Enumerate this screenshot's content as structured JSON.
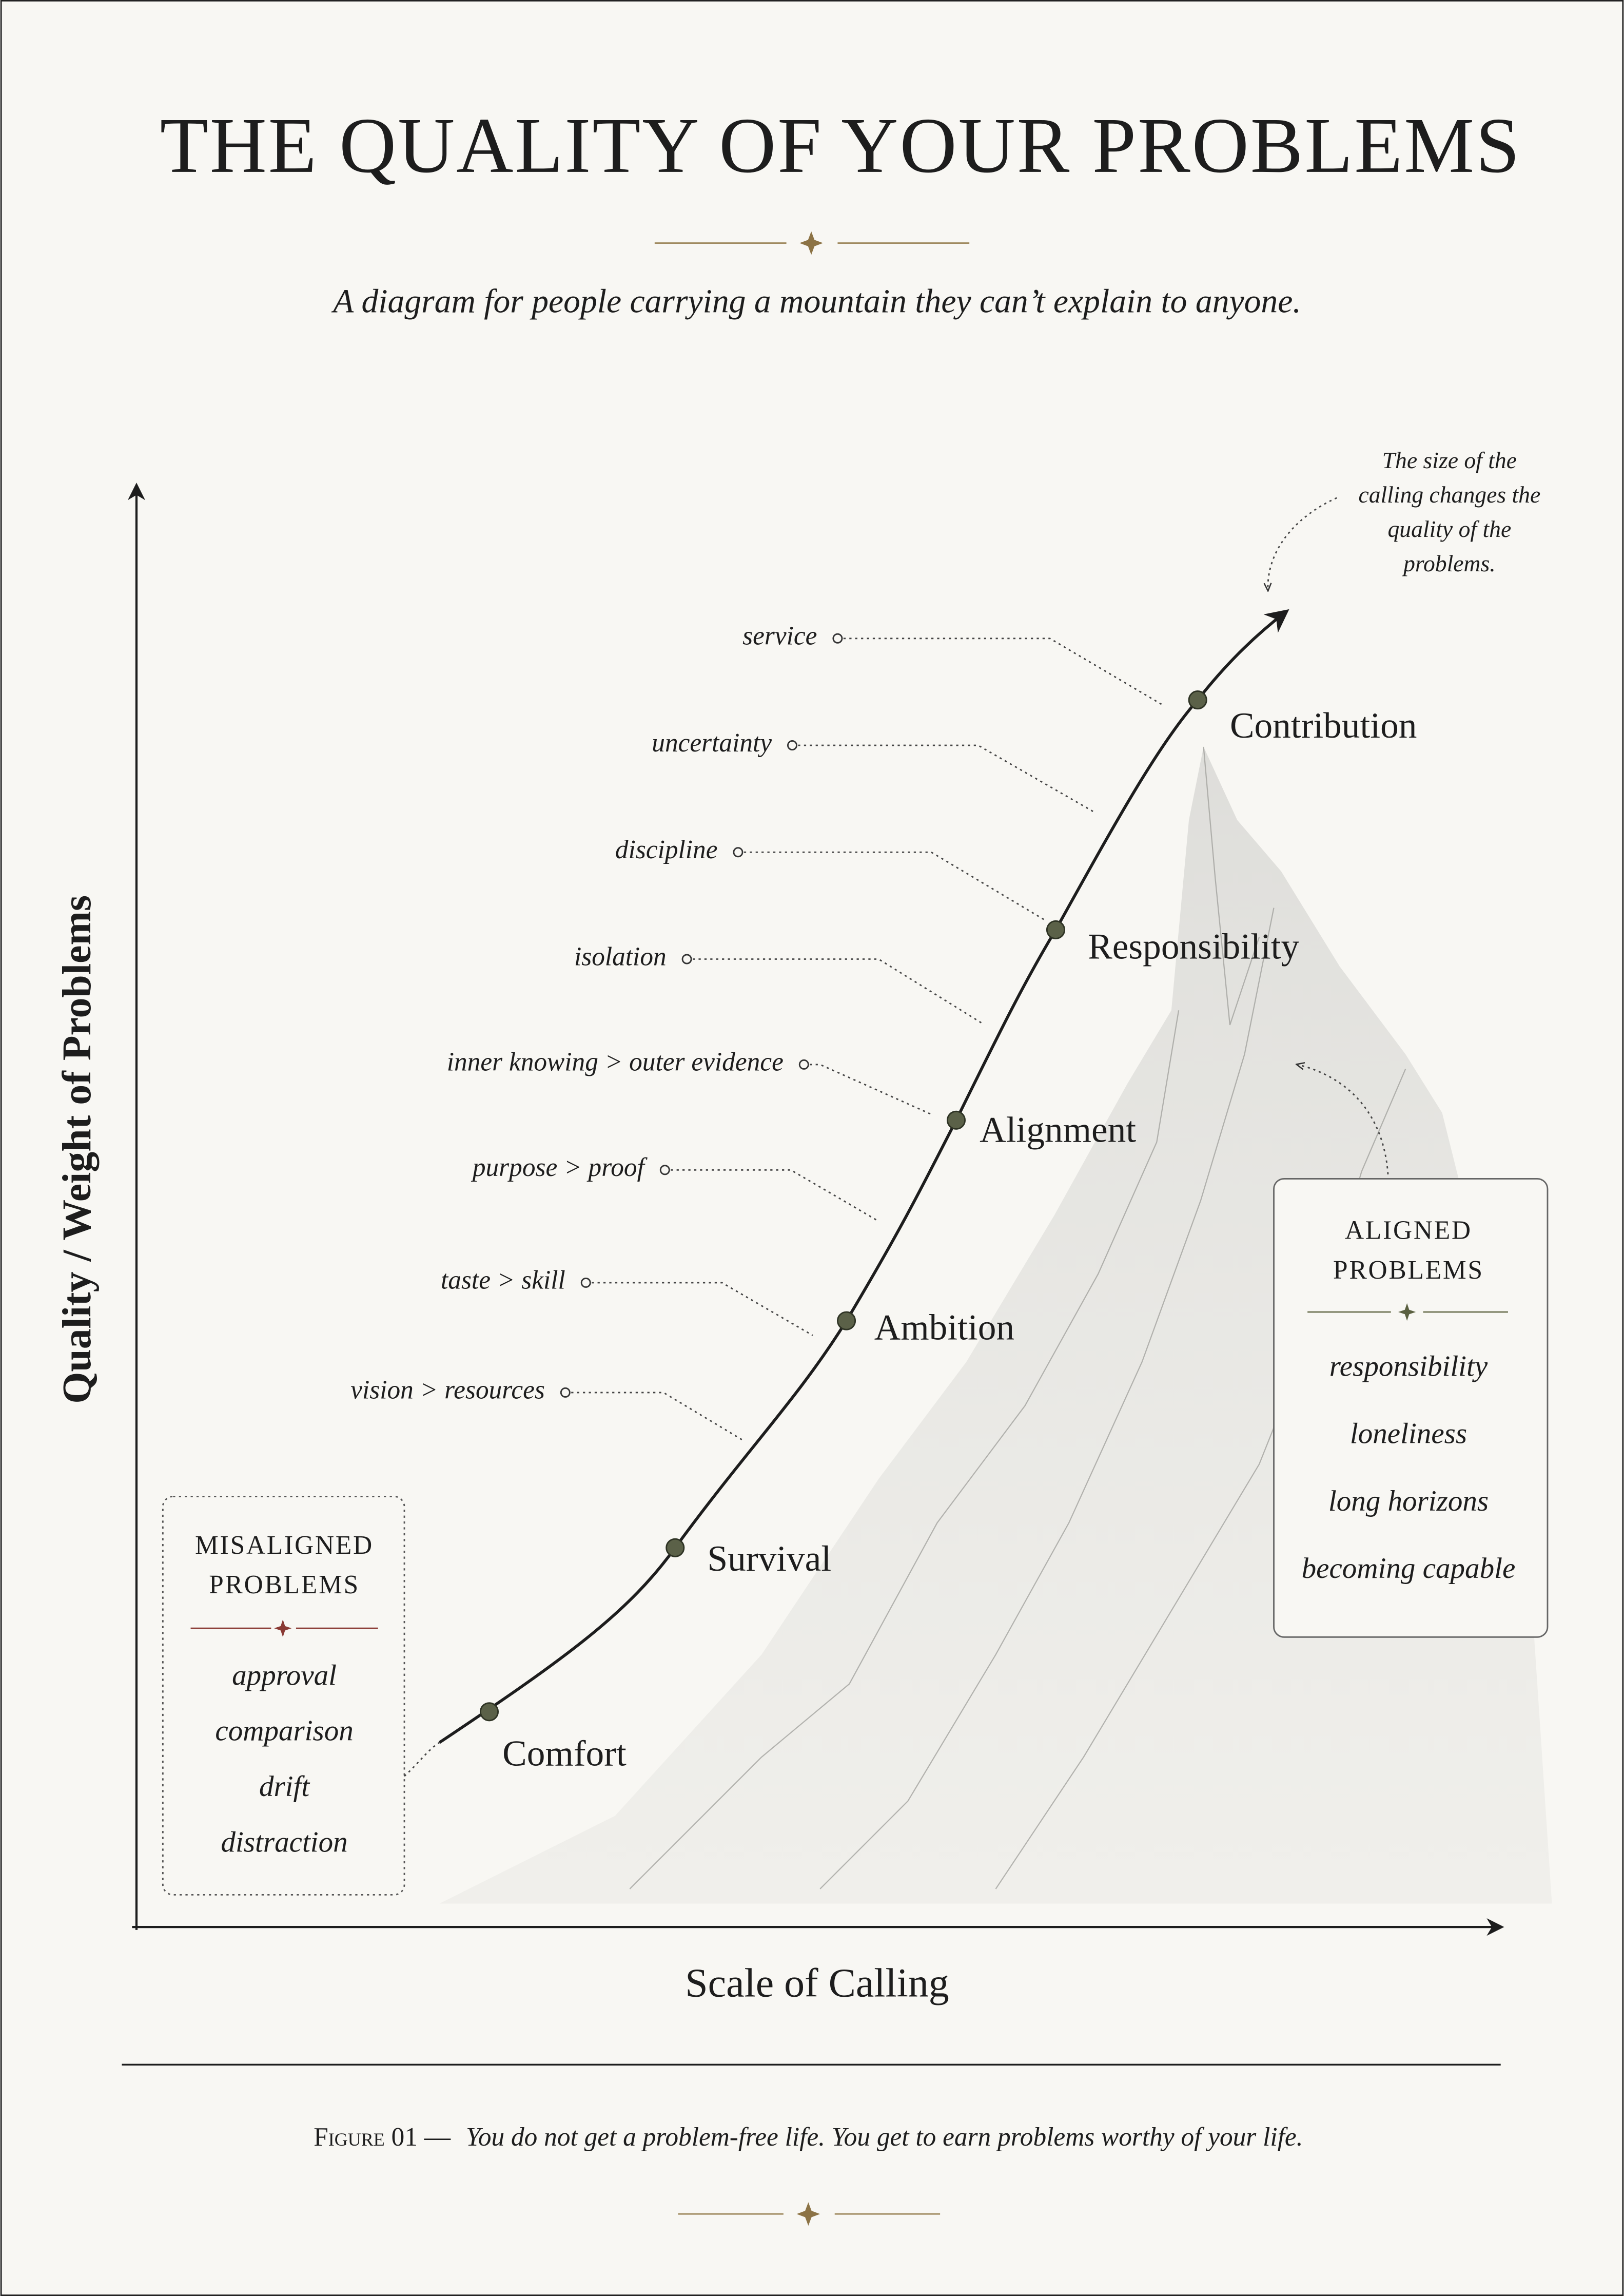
{
  "header": {
    "title": "THE QUALITY OF YOUR PROBLEMS",
    "subtitle": "A diagram for people carrying a mountain they can’t explain to anyone."
  },
  "axes": {
    "y_label": "Quality / Weight of Problems",
    "x_label": "Scale of Calling"
  },
  "annotation": {
    "lines": [
      "The size of the",
      "calling changes the",
      "quality of the",
      "problems."
    ]
  },
  "stages": [
    "Comfort",
    "Survival",
    "Ambition",
    "Alignment",
    "Responsibility",
    "Contribution"
  ],
  "problems": [
    "service",
    "uncertainty",
    "discipline",
    "isolation",
    "inner knowing > outer evidence",
    "purpose > proof",
    "taste > skill",
    "vision > resources"
  ],
  "misaligned": {
    "title": [
      "MISALIGNED",
      "PROBLEMS"
    ],
    "items": [
      "approval",
      "comparison",
      "drift",
      "distraction"
    ]
  },
  "aligned": {
    "title": [
      "ALIGNED",
      "PROBLEMS"
    ],
    "items": [
      "responsibility",
      "loneliness",
      "long horizons",
      "becoming capable"
    ]
  },
  "footer": {
    "figure": "Figure 01 —",
    "caption": "You do not get a problem-free life. You get to earn problems worthy of your life."
  }
}
